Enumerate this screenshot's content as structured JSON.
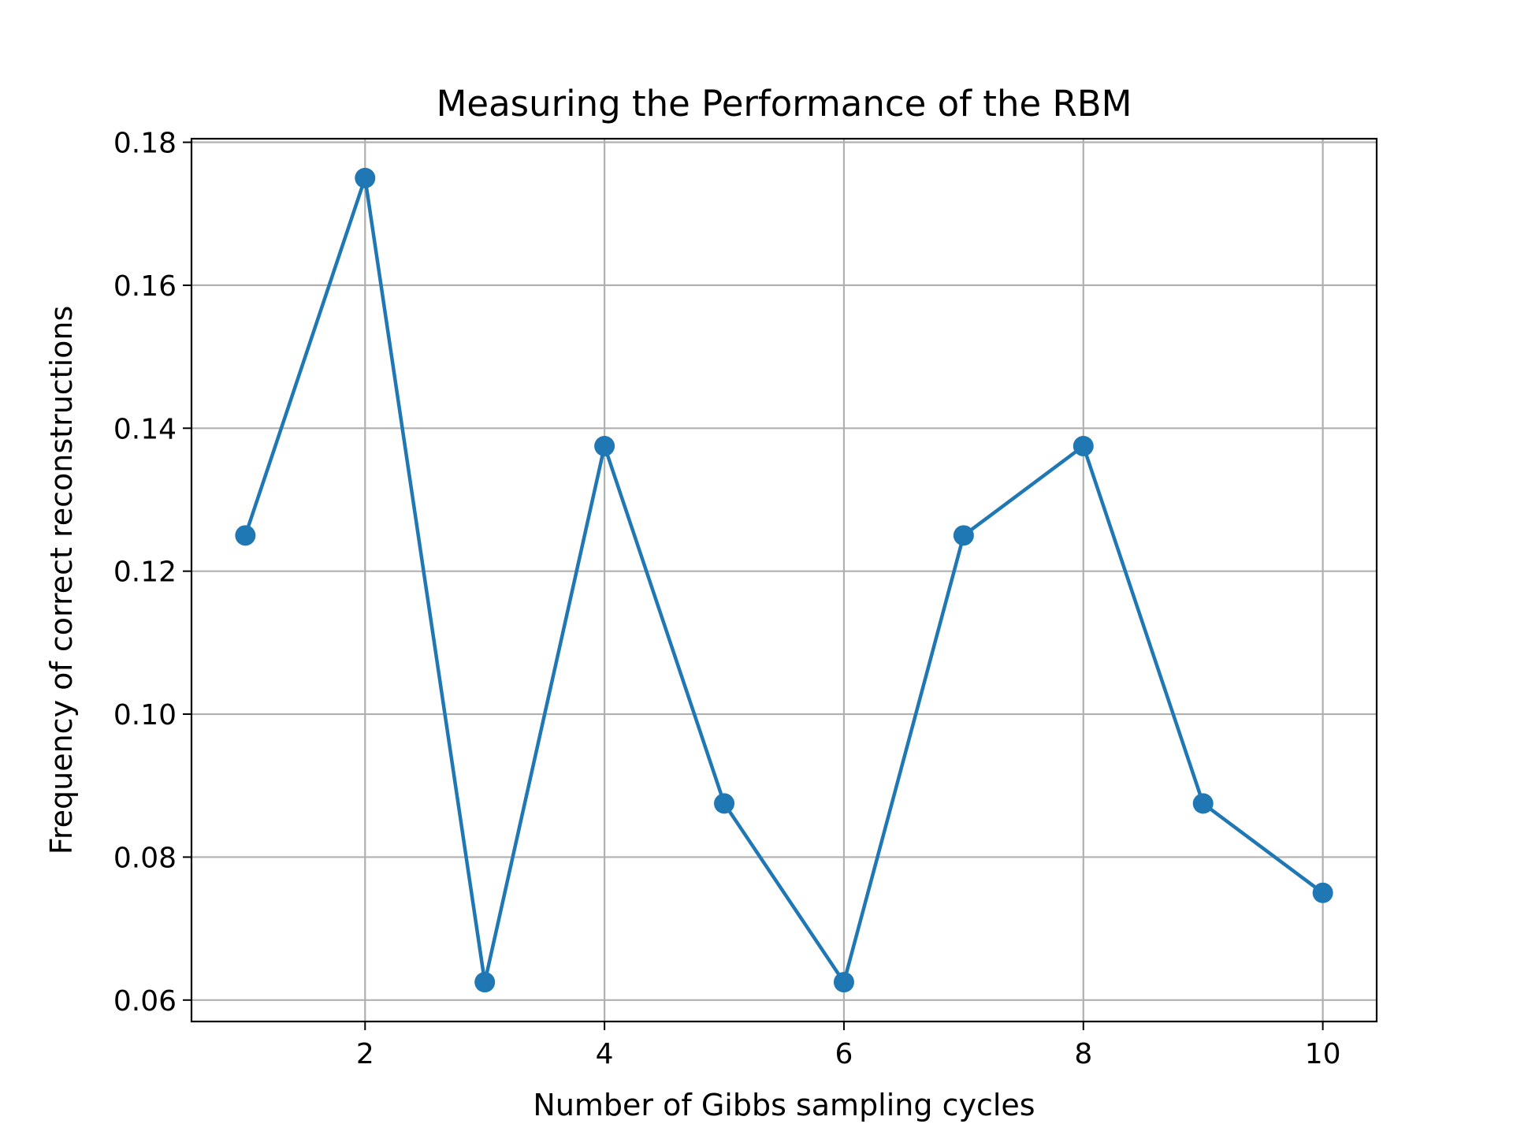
{
  "chart_data": {
    "type": "line",
    "title": "Measuring the Performance of the RBM",
    "xlabel": "Number of Gibbs sampling cycles",
    "ylabel": "Frequency of correct reconstructions",
    "x": [
      1,
      2,
      3,
      4,
      5,
      6,
      7,
      8,
      9,
      10
    ],
    "series": [
      {
        "values": [
          0.125,
          0.175,
          0.0625,
          0.1375,
          0.0875,
          0.0625,
          0.125,
          0.1375,
          0.0875,
          0.075
        ],
        "color": "#1f77b4",
        "marker": "circle"
      }
    ],
    "xlim": [
      0.55,
      10.45
    ],
    "ylim": [
      0.057,
      0.1805
    ],
    "xticks": [
      2,
      4,
      6,
      8,
      10
    ],
    "xtick_labels": [
      "2",
      "4",
      "6",
      "8",
      "10"
    ],
    "yticks": [
      0.06,
      0.08,
      0.1,
      0.12,
      0.14,
      0.16,
      0.18
    ],
    "ytick_labels": [
      "0.06",
      "0.08",
      "0.10",
      "0.12",
      "0.14",
      "0.16",
      "0.18"
    ],
    "grid": true,
    "legend": "none"
  }
}
